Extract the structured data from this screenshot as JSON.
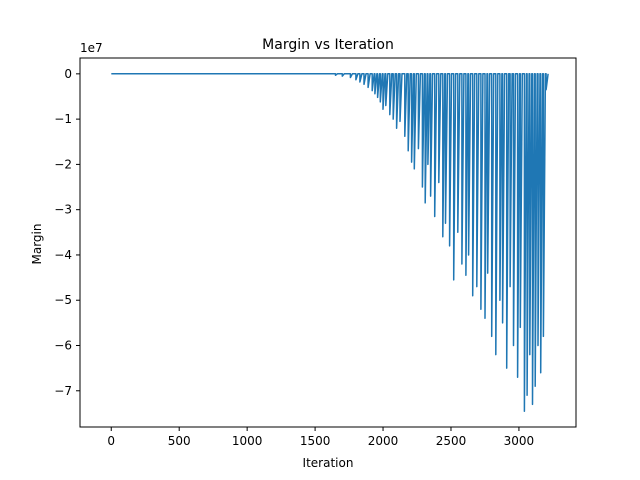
{
  "chart_data": {
    "type": "line",
    "title": "Margin vs Iteration",
    "xlabel": "Iteration",
    "ylabel": "Margin",
    "offset_label": "1e7",
    "xlim": [
      -230,
      3420
    ],
    "ylim": [
      -78000000,
      3500000
    ],
    "xticks": [
      0,
      500,
      1000,
      1500,
      2000,
      2500,
      3000
    ],
    "xtick_labels": [
      "0",
      "500",
      "1000",
      "1500",
      "2000",
      "2500",
      "3000"
    ],
    "yticks": [
      0,
      -10000000,
      -20000000,
      -30000000,
      -40000000,
      -50000000,
      -60000000,
      -70000000
    ],
    "ytick_labels": [
      "0",
      "−1",
      "−2",
      "−3",
      "−4",
      "−5",
      "−6",
      "−7"
    ],
    "grid": false,
    "legend": "none",
    "color": "#1f77b4",
    "series": [
      {
        "x": [
          0,
          1650,
          1700,
          1760,
          1800,
          1830,
          1860,
          1890,
          1920,
          1940,
          1960,
          1980,
          2000,
          2020,
          2050,
          2075,
          2100,
          2125,
          2160,
          2185,
          2210,
          2230,
          2260,
          2290,
          2310,
          2330,
          2350,
          2380,
          2410,
          2440,
          2460,
          2490,
          2520,
          2550,
          2580,
          2610,
          2630,
          2660,
          2690,
          2720,
          2750,
          2770,
          2800,
          2830,
          2860,
          2880,
          2910,
          2935,
          2960,
          2990,
          3010,
          3040,
          3060,
          3080,
          3100,
          3120,
          3140,
          3160,
          3180,
          3200
        ],
        "y": [
          0,
          -300000,
          -500000,
          -800000,
          -1300000,
          -1800000,
          -2300000,
          -3000000,
          -3700000,
          -4400000,
          -5200000,
          -6200000,
          -7800000,
          -7000000,
          -9000000,
          -10000000,
          -12000000,
          -10500000,
          -13800000,
          -17000000,
          -19500000,
          -21000000,
          -16500000,
          -25000000,
          -28500000,
          -20000000,
          -27000000,
          -31500000,
          -24000000,
          -36000000,
          -33000000,
          -38000000,
          -45500000,
          -35000000,
          -42000000,
          -44500000,
          -40000000,
          -49000000,
          -47000000,
          -52000000,
          -54000000,
          -44000000,
          -58000000,
          -62000000,
          -50000000,
          -55000000,
          -65000000,
          -47000000,
          -60000000,
          -67000000,
          -56000000,
          -74500000,
          -71000000,
          -62000000,
          -73000000,
          -69000000,
          -60000000,
          -66000000,
          -58000000,
          -3500000
        ]
      }
    ]
  }
}
